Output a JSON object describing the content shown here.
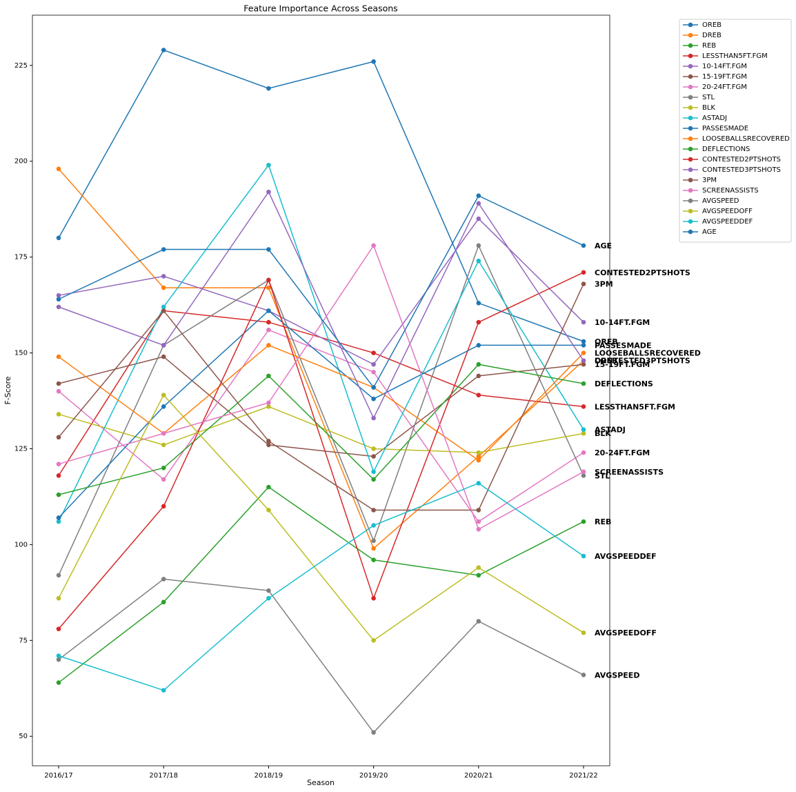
{
  "chart_data": {
    "type": "line",
    "title": "Feature Importance Across Seasons",
    "x_label": "Season",
    "y_label": "F-Score",
    "categories": [
      "2016/17",
      "2017/18",
      "2018/19",
      "2019/20",
      "2020/21",
      "2021/22"
    ],
    "ylim": [
      42.3,
      238.1
    ],
    "yticks": [
      50,
      75,
      100,
      125,
      150,
      175,
      200,
      225
    ],
    "legend": "upper right outside",
    "end_labels": true,
    "series": [
      {
        "name": "OREB",
        "color": "#1f77b4",
        "values": [
          180,
          229,
          219,
          226,
          163,
          153
        ]
      },
      {
        "name": "DREB",
        "color": "#ff7f0e",
        "values": [
          198,
          167,
          167,
          99,
          123,
          148
        ]
      },
      {
        "name": "REB",
        "color": "#2ca02c",
        "values": [
          64,
          85,
          115,
          96,
          92,
          106
        ]
      },
      {
        "name": "LESSTHAN5FT.FGM",
        "color": "#d62728",
        "values": [
          118,
          161,
          158,
          150,
          139,
          136
        ]
      },
      {
        "name": "10-14FT.FGM",
        "color": "#9467bd",
        "values": [
          165,
          170,
          161,
          147,
          185,
          158
        ]
      },
      {
        "name": "15-19FT.FGM",
        "color": "#8c564b",
        "values": [
          142,
          149,
          126,
          123,
          144,
          147
        ]
      },
      {
        "name": "20-24FT.FGM",
        "color": "#e377c2",
        "values": [
          140,
          117,
          156,
          145,
          106,
          124
        ]
      },
      {
        "name": "STL",
        "color": "#7f7f7f",
        "values": [
          92,
          152,
          169,
          101,
          178,
          118
        ]
      },
      {
        "name": "BLK",
        "color": "#bcbd22",
        "values": [
          134,
          126,
          136,
          125,
          124,
          129
        ]
      },
      {
        "name": "ASTADJ",
        "color": "#17becf",
        "values": [
          106,
          162,
          199,
          119,
          174,
          130
        ]
      },
      {
        "name": "PASSESMADE",
        "color": "#1f77b4",
        "values": [
          107,
          136,
          161,
          138,
          152,
          152
        ]
      },
      {
        "name": "LOOSEBALLSRECOVERED",
        "color": "#ff7f0e",
        "values": [
          149,
          129,
          152,
          141,
          122,
          150
        ]
      },
      {
        "name": "DEFLECTIONS",
        "color": "#2ca02c",
        "values": [
          113,
          120,
          144,
          117,
          147,
          142
        ]
      },
      {
        "name": "CONTESTED2PTSHOTS",
        "color": "#d62728",
        "values": [
          78,
          110,
          169,
          86,
          158,
          171
        ]
      },
      {
        "name": "CONTESTED3PTSHOTS",
        "color": "#9467bd",
        "values": [
          162,
          152,
          192,
          133,
          189,
          148
        ]
      },
      {
        "name": "3PM",
        "color": "#8c564b",
        "values": [
          128,
          161,
          127,
          109,
          109,
          168
        ]
      },
      {
        "name": "SCREENASSISTS",
        "color": "#e377c2",
        "values": [
          121,
          129,
          137,
          178,
          104,
          119
        ]
      },
      {
        "name": "AVGSPEED",
        "color": "#7f7f7f",
        "values": [
          70,
          91,
          88,
          51,
          80,
          66
        ]
      },
      {
        "name": "AVGSPEEDOFF",
        "color": "#bcbd22",
        "values": [
          86,
          139,
          109,
          75,
          94,
          77
        ]
      },
      {
        "name": "AVGSPEEDDEF",
        "color": "#17becf",
        "values": [
          71,
          62,
          86,
          105,
          116,
          97
        ]
      },
      {
        "name": "AGE",
        "color": "#1f77b4",
        "values": [
          164,
          177,
          177,
          141,
          191,
          178
        ]
      }
    ]
  }
}
